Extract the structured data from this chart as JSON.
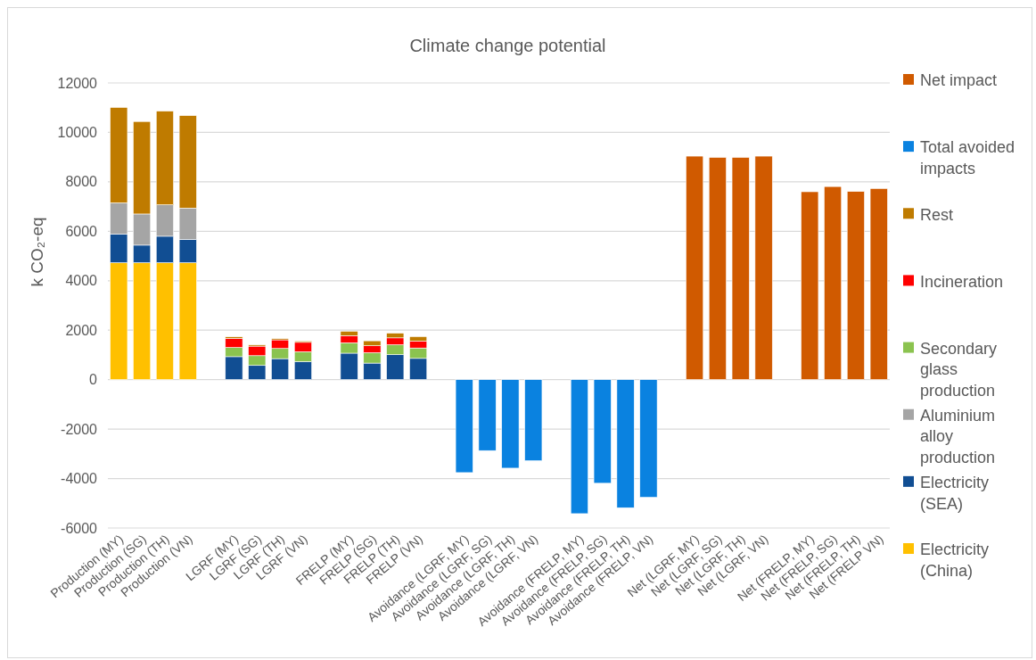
{
  "chart_data": {
    "type": "bar",
    "title": "Climate change potential",
    "ylabel": "k CO₂-eq",
    "stacked": true,
    "grid": "y",
    "legend": "right",
    "categories": [
      "Production (MY)",
      "Production (SG)",
      "Production (TH)",
      "Production (VN)",
      null,
      "LGRF (MY)",
      "LGRF (SG)",
      "LGRF (TH)",
      "LGRF (VN)",
      null,
      "FRELP (MY)",
      "FRELP (SG)",
      "FRELP (TH)",
      "FRELP (VN)",
      null,
      "Avoidance (LGRF, MY)",
      "Avoidance (LGRF, SG)",
      "Avoidance (LGRF, TH)",
      "Avoidance (LGRF, VN)",
      null,
      "Avoidance (FRELP, MY)",
      "Avoidance (FRELP, SG)",
      "Avoidance (FRELP, TH)",
      "Avoidance (FRELP, VN)",
      null,
      "Net (LGRF, MY)",
      "Net (LGRF, SG)",
      "Net (LGRF, TH)",
      "Net (LGRF, VN)",
      null,
      "Net (FRELP, MY)",
      "Net (FRELP, SG)",
      "Net (FRELP, TH)",
      "Net (FRELP VN)"
    ],
    "ylim": [
      -6000,
      12000
    ],
    "yticks": [
      -6000,
      -4000,
      -2000,
      0,
      2000,
      4000,
      6000,
      8000,
      10000,
      12000
    ],
    "series": [
      {
        "name": "Electricity (China)",
        "color": "#ffc000",
        "values": [
          4730,
          4730,
          4730,
          4730,
          null,
          null,
          null,
          null,
          null,
          null,
          null,
          null,
          null,
          null,
          null,
          null,
          null,
          null,
          null,
          null,
          null,
          null,
          null,
          null,
          null,
          null,
          null,
          null,
          null,
          null,
          null,
          null,
          null,
          null
        ]
      },
      {
        "name": "Electricity (SEA)",
        "color": "#114e93",
        "values": [
          1160,
          710,
          1070,
          940,
          null,
          930,
          575,
          850,
          730,
          null,
          1070,
          670,
          1010,
          860,
          null,
          null,
          null,
          null,
          null,
          null,
          null,
          null,
          null,
          null,
          null,
          null,
          null,
          null,
          null,
          null,
          null,
          null,
          null,
          null
        ]
      },
      {
        "name": "Aluminium alloy production",
        "color": "#a5a5a5",
        "values": [
          1260,
          1260,
          1270,
          1270,
          null,
          null,
          null,
          null,
          null,
          null,
          null,
          null,
          null,
          null,
          null,
          null,
          null,
          null,
          null,
          null,
          null,
          null,
          null,
          null,
          null,
          null,
          null,
          null,
          null,
          null,
          null,
          null,
          null,
          null
        ]
      },
      {
        "name": "Secondary glass production",
        "color": "#8bc34f",
        "values": [
          null,
          null,
          null,
          null,
          null,
          370,
          395,
          410,
          400,
          null,
          420,
          420,
          400,
          420,
          null,
          null,
          null,
          null,
          null,
          null,
          null,
          null,
          null,
          null,
          null,
          null,
          null,
          null,
          null,
          null,
          null,
          null,
          null,
          null
        ]
      },
      {
        "name": "Incineration",
        "color": "#ff0000",
        "values": [
          null,
          null,
          null,
          null,
          null,
          370,
          385,
          350,
          380,
          null,
          290,
          280,
          280,
          280,
          null,
          null,
          null,
          null,
          null,
          null,
          null,
          null,
          null,
          null,
          null,
          null,
          null,
          null,
          null,
          null,
          null,
          null,
          null,
          null
        ]
      },
      {
        "name": "Rest",
        "color": "#bf7b00",
        "values": [
          3860,
          3740,
          3790,
          3740,
          null,
          60,
          50,
          50,
          50,
          null,
          180,
          200,
          190,
          180,
          null,
          null,
          null,
          null,
          null,
          null,
          null,
          null,
          null,
          null,
          null,
          null,
          null,
          null,
          null,
          null,
          null,
          null,
          null,
          null
        ]
      },
      {
        "name": "Total avoided impacts",
        "color": "#0a82e0",
        "values": [
          null,
          null,
          null,
          null,
          null,
          null,
          null,
          null,
          null,
          null,
          null,
          null,
          null,
          null,
          null,
          -3760,
          -2870,
          -3580,
          -3280,
          null,
          -5420,
          -4190,
          -5180,
          -4760,
          null,
          null,
          null,
          null,
          null,
          null,
          null,
          null,
          null,
          null
        ]
      },
      {
        "name": "Net impact",
        "color": "#d05a00",
        "values": [
          null,
          null,
          null,
          null,
          null,
          null,
          null,
          null,
          null,
          null,
          null,
          null,
          null,
          null,
          null,
          null,
          null,
          null,
          null,
          null,
          null,
          null,
          null,
          null,
          null,
          9040,
          8990,
          8990,
          9040,
          null,
          7600,
          7810,
          7610,
          7730
        ]
      }
    ]
  }
}
